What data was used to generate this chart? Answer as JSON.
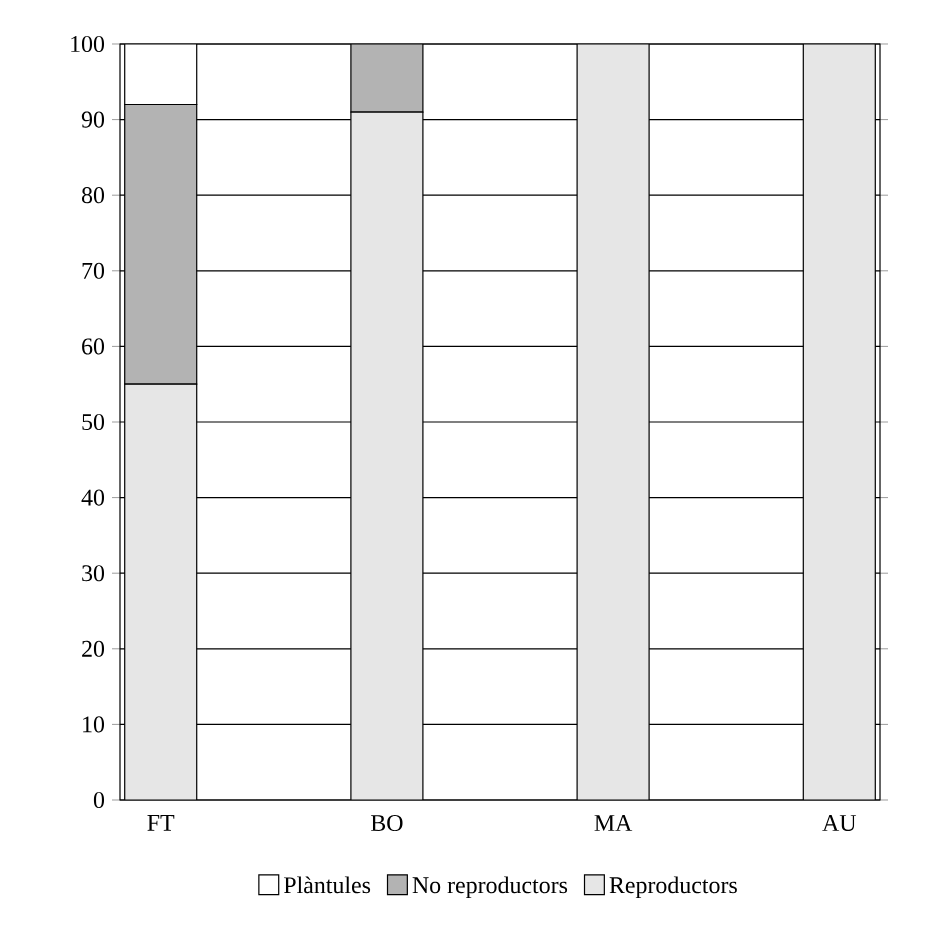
{
  "chart_data": {
    "type": "bar",
    "stacked": true,
    "categories": [
      "FT",
      "BO",
      "MA",
      "AU"
    ],
    "series": [
      {
        "name": "Reproductors",
        "color": "#e6e6e6",
        "values": [
          55,
          91,
          100,
          100
        ]
      },
      {
        "name": "No reproductors",
        "color": "#b3b3b3",
        "values": [
          37,
          9,
          0,
          0
        ]
      },
      {
        "name": "Plàntules",
        "color": "#ffffff",
        "values": [
          8,
          0,
          0,
          0
        ]
      }
    ],
    "ylim": [
      0,
      100
    ],
    "yticks": [
      0,
      10,
      20,
      30,
      40,
      50,
      60,
      70,
      80,
      90,
      100
    ],
    "grid": "y",
    "legend": "bottom"
  }
}
